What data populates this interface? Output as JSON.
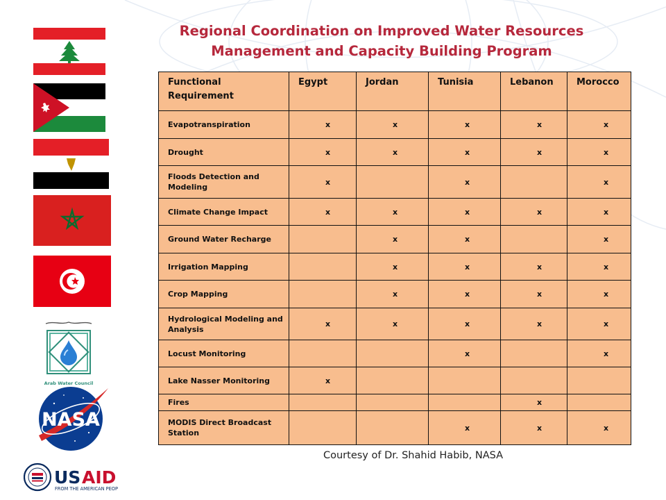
{
  "title_line1": "Regional Coordination on Improved Water Resources",
  "title_line2": "Management and Capacity Building Program",
  "table": {
    "headers": [
      "Functional Requirement",
      "Egypt",
      "Jordan",
      "Tunisia",
      "Lebanon",
      "Morocco"
    ],
    "rows": [
      {
        "label": "Evapotranspiration",
        "cells": [
          "x",
          "x",
          "x",
          "x",
          "x"
        ]
      },
      {
        "label": "Drought",
        "cells": [
          "x",
          "x",
          "x",
          "x",
          "x"
        ]
      },
      {
        "label": "Floods Detection and Modeling",
        "cells": [
          "x",
          "",
          "x",
          "",
          "x"
        ]
      },
      {
        "label": "Climate Change Impact",
        "cells": [
          "x",
          "x",
          "x",
          "x",
          "x"
        ]
      },
      {
        "label": "Ground Water Recharge",
        "cells": [
          "",
          "x",
          "x",
          "",
          "x"
        ]
      },
      {
        "label": "Irrigation Mapping",
        "cells": [
          "",
          "x",
          "x",
          "x",
          "x"
        ]
      },
      {
        "label": "Crop Mapping",
        "cells": [
          "",
          "x",
          "x",
          "x",
          "x"
        ]
      },
      {
        "label": "Hydrological Modeling and Analysis",
        "cells": [
          "x",
          "x",
          "x",
          "x",
          "x"
        ]
      },
      {
        "label": "Locust Monitoring",
        "cells": [
          "",
          "",
          "x",
          "",
          "x"
        ]
      },
      {
        "label": "Lake Nasser Monitoring",
        "cells": [
          "x",
          "",
          "",
          "",
          ""
        ]
      },
      {
        "label": "Fires",
        "cells": [
          "",
          "",
          "",
          "x",
          ""
        ]
      },
      {
        "label": "MODIS Direct Broadcast Station",
        "cells": [
          "",
          "",
          "x",
          "x",
          "x"
        ]
      }
    ]
  },
  "courtesy": "Courtesy of Dr. Shahid Habib, NASA",
  "logos": {
    "arab_water_council_name": "Arab Water Council",
    "arab_water_council_arabic": "المجلس العربي للمياه",
    "nasa_text": "NASA",
    "usaid_text": "USAID",
    "usaid_tagline": "FROM THE AMERICAN PEOPLE"
  },
  "colors": {
    "title": "#b6283c",
    "table_fill": "#f8bd8e",
    "usaid_blue": "#0a2a5e",
    "usaid_red": "#c8102e",
    "nasa_blue": "#0b3d91"
  }
}
